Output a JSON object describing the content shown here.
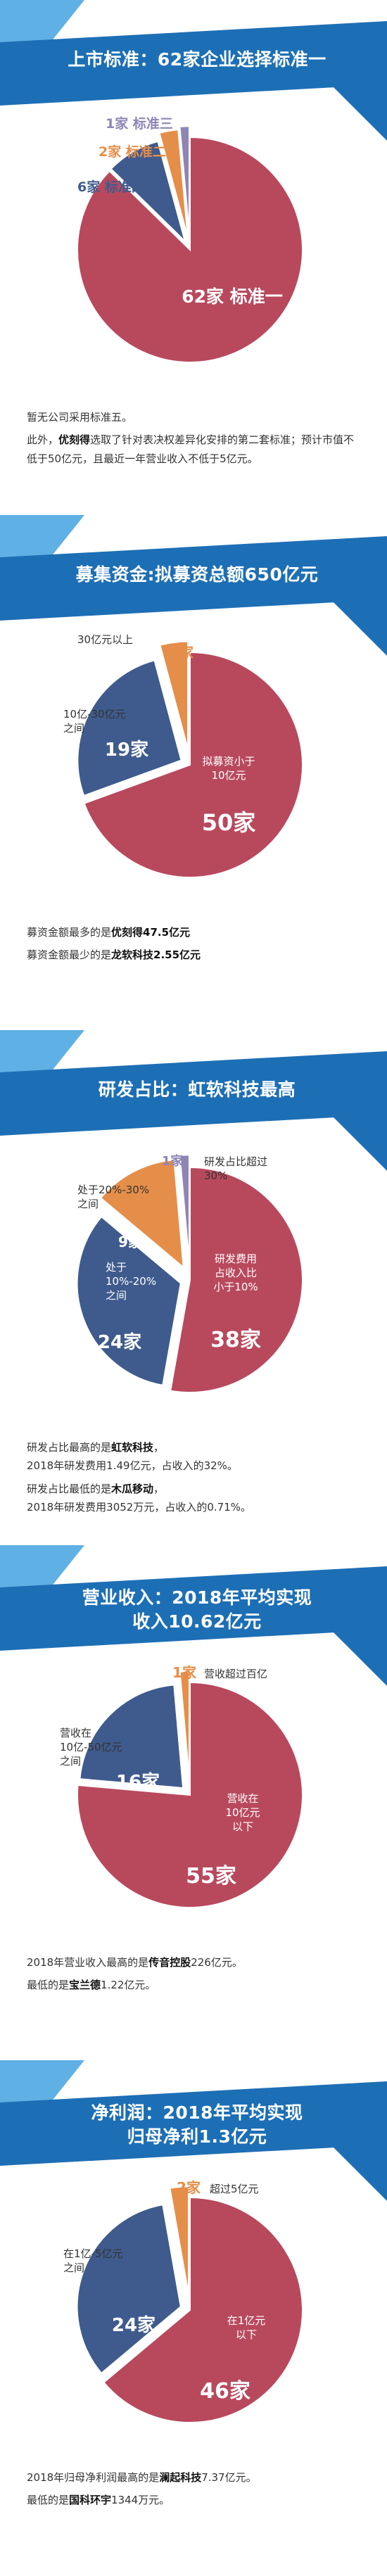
{
  "colors": {
    "banner_light": "#5fb0e4",
    "banner_dark": "#1d6fb5",
    "red": "#b8495d",
    "blue": "#3f5b8d",
    "orange": "#e58e4a",
    "purple": "#8e85b5"
  },
  "sections": [
    {
      "title_lines": [
        "上市标准：62家企业选择标准一"
      ],
      "notes": [
        {
          "parts": [
            {
              "t": "暂无公司采用标准五。",
              "b": false
            }
          ]
        },
        {
          "parts": [
            {
              "t": "此外，",
              "b": false
            },
            {
              "t": "优刻得",
              "b": true
            },
            {
              "t": "选取了针对表决权差异化安排的第二套标准；预计市值不低于50亿元，且最近一年营业收入不低于5亿元。",
              "b": false
            }
          ]
        }
      ]
    },
    {
      "title_lines": [
        "募集资金:拟募资总额650亿元"
      ],
      "notes": [
        {
          "parts": [
            {
              "t": "募资金额最多的是",
              "b": false
            },
            {
              "t": "优刻得47.5亿元",
              "b": true
            }
          ]
        },
        {
          "parts": [
            {
              "t": "募资金额最少的是",
              "b": false
            },
            {
              "t": "龙软科技2.55亿元",
              "b": true
            }
          ]
        }
      ]
    },
    {
      "title_lines": [
        "研发占比：虹软科技最高"
      ],
      "notes": [
        {
          "parts": [
            {
              "t": "研发占比最高的是",
              "b": false
            },
            {
              "t": "虹软科技",
              "b": true
            },
            {
              "t": "，",
              "b": false
            }
          ]
        },
        {
          "parts": [
            {
              "t": "2018年研发费用1.49亿元，占收入的32%。",
              "b": false
            }
          ]
        },
        {
          "parts": [
            {
              "t": "研发占比最低的是",
              "b": false
            },
            {
              "t": "木瓜移动",
              "b": true
            },
            {
              "t": "，",
              "b": false
            }
          ]
        },
        {
          "parts": [
            {
              "t": "2018年研发费用3052万元，占收入的0.71%。",
              "b": false
            }
          ]
        }
      ]
    },
    {
      "title_lines": [
        "营业收入：2018年平均实现",
        "收入10.62亿元"
      ],
      "notes": [
        {
          "parts": [
            {
              "t": "2018年营业收入最高的是",
              "b": false
            },
            {
              "t": "传音控股",
              "b": true
            },
            {
              "t": "226亿元。",
              "b": false
            }
          ]
        },
        {
          "parts": [
            {
              "t": "最低的是",
              "b": false
            },
            {
              "t": "宝兰德",
              "b": true
            },
            {
              "t": "1.22亿元。",
              "b": false
            }
          ]
        }
      ]
    },
    {
      "title_lines": [
        "净利润：2018年平均实现",
        "归母净利1.3亿元"
      ],
      "notes": [
        {
          "parts": [
            {
              "t": "2018年归母净利润最高的是",
              "b": false
            },
            {
              "t": "澜起科技",
              "b": true
            },
            {
              "t": "7.37亿元。",
              "b": false
            }
          ]
        },
        {
          "parts": [
            {
              "t": "最低的是",
              "b": false
            },
            {
              "t": "国科环宇",
              "b": true
            },
            {
              "t": "1344万元。",
              "b": false
            }
          ]
        }
      ]
    }
  ],
  "chart_data": [
    {
      "type": "pie",
      "title": "上市标准：62家企业选择标准一",
      "slices": [
        {
          "value": 62,
          "label": "62家  标准一",
          "color": "#b8495d"
        },
        {
          "value": 6,
          "label": "6家  标准四",
          "color": "#3f5b8d"
        },
        {
          "value": 2,
          "label": "2家  标准二",
          "color": "#e58e4a"
        },
        {
          "value": 1,
          "label": "1家  标准三",
          "color": "#8e85b5"
        }
      ]
    },
    {
      "type": "pie",
      "title": "募集资金:拟募资总额650亿元",
      "slices": [
        {
          "value": 50,
          "label": "50家",
          "category": "拟募资小于10亿元",
          "color": "#b8495d"
        },
        {
          "value": 19,
          "label": "19家",
          "category": "10亿-30亿元之间",
          "color": "#3f5b8d"
        },
        {
          "value": 3,
          "label": "3家",
          "category": "30亿元以上",
          "color": "#e58e4a"
        }
      ]
    },
    {
      "type": "pie",
      "title": "研发占比：虹软科技最高",
      "slices": [
        {
          "value": 38,
          "label": "38家",
          "category": "研发费用占收入比小于10%",
          "color": "#b8495d"
        },
        {
          "value": 24,
          "label": "24家",
          "category": "处于10%-20%之间",
          "color": "#3f5b8d"
        },
        {
          "value": 9,
          "label": "9家",
          "category": "处于20%-30%之间",
          "color": "#e58e4a"
        },
        {
          "value": 1,
          "label": "1家",
          "category": "研发占比超过30%",
          "color": "#8e85b5"
        }
      ]
    },
    {
      "type": "pie",
      "title": "营业收入：2018年平均实现收入10.62亿元",
      "slices": [
        {
          "value": 55,
          "label": "55家",
          "category": "营收在10亿元以下",
          "color": "#b8495d"
        },
        {
          "value": 16,
          "label": "16家",
          "category": "营收在10亿-50亿元之间",
          "color": "#3f5b8d"
        },
        {
          "value": 1,
          "label": "1家",
          "category": "营收超过百亿",
          "color": "#e58e4a"
        }
      ]
    },
    {
      "type": "pie",
      "title": "净利润：2018年平均实现归母净利1.3亿元",
      "slices": [
        {
          "value": 46,
          "label": "46家",
          "category": "在1亿元以下",
          "color": "#b8495d"
        },
        {
          "value": 24,
          "label": "24家",
          "category": "在1亿-5亿元之间",
          "color": "#3f5b8d"
        },
        {
          "value": 2,
          "label": "2家",
          "category": "超过5亿元",
          "color": "#e58e4a"
        }
      ]
    }
  ]
}
